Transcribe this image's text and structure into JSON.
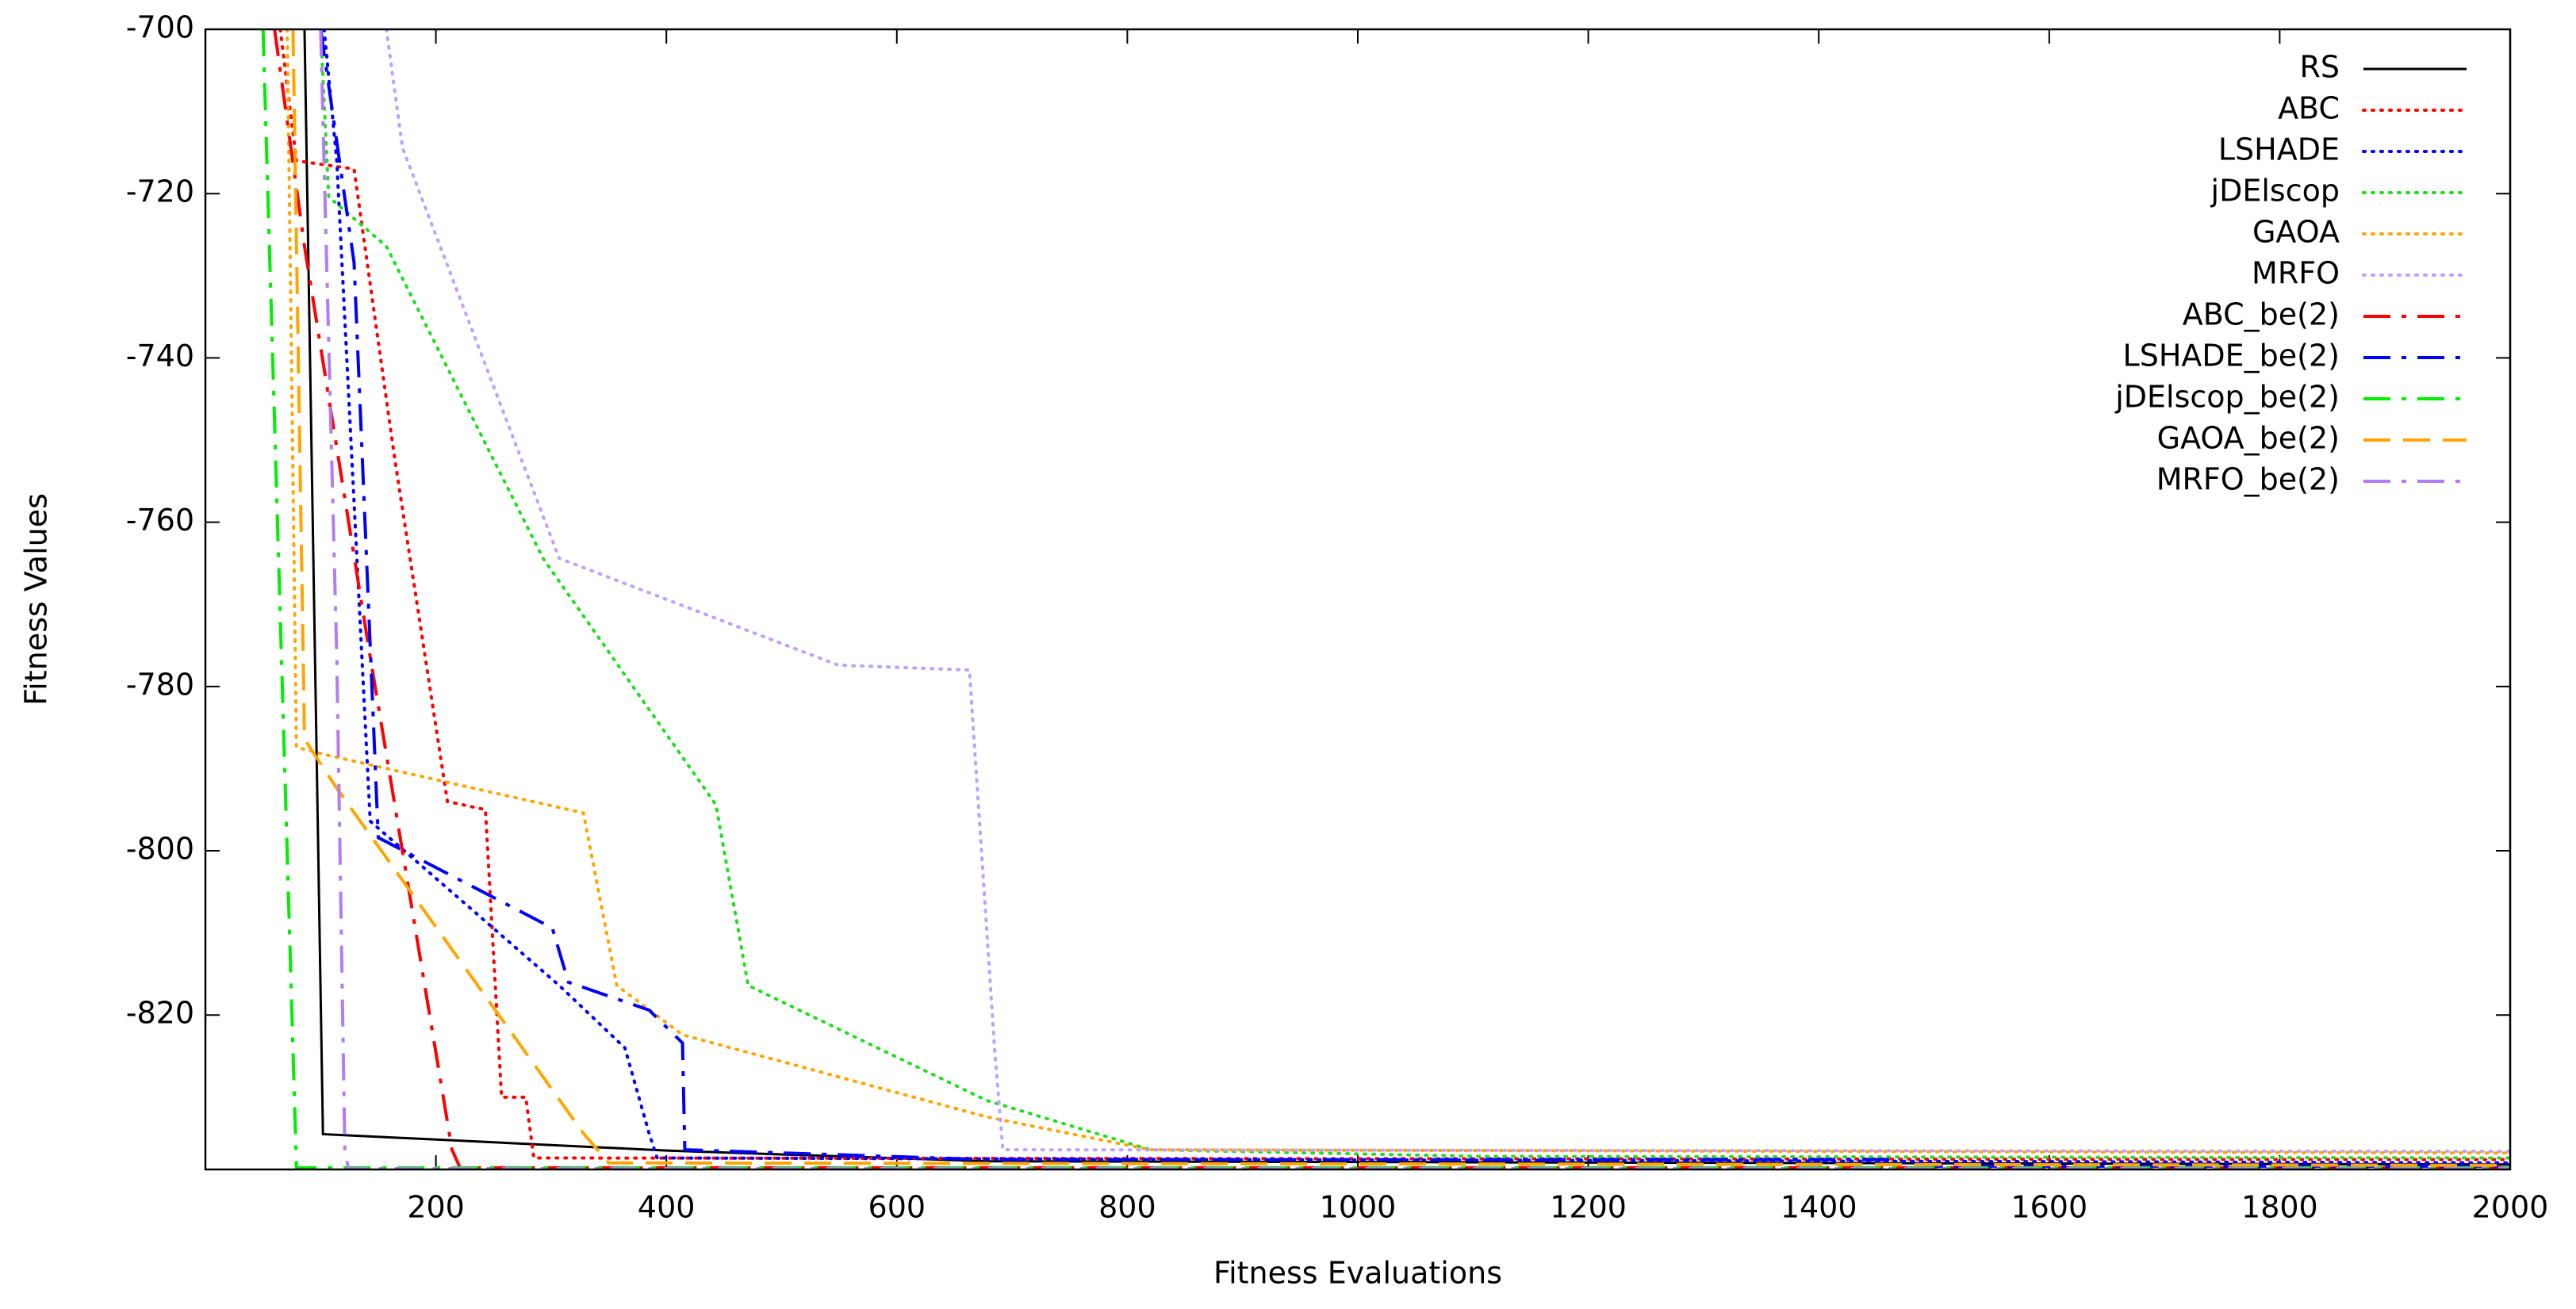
{
  "chart_data": {
    "type": "line",
    "xlabel": "Fitness Evaluations",
    "ylabel": "Fitness Values",
    "xlim": [
      0,
      2000
    ],
    "ylim": [
      -838.8,
      -700
    ],
    "xticks": [
      200,
      400,
      600,
      800,
      1000,
      1200,
      1400,
      1600,
      1800,
      2000
    ],
    "yticks": [
      -820,
      -800,
      -780,
      -760,
      -740,
      -720,
      -700
    ],
    "legend": "upper right",
    "series": [
      {
        "name": "RS",
        "color": "#000000",
        "style": "solid",
        "x": [
          86,
          102,
          400,
          678,
          2000
        ],
        "values": [
          -700,
          -834.5,
          -836.5,
          -837.8,
          -838.2
        ]
      },
      {
        "name": "ABC",
        "color": "#ff0000",
        "style": "dotted",
        "x": [
          65,
          79,
          129,
          164,
          210,
          243,
          257,
          278,
          285,
          2000
        ],
        "values": [
          -700,
          -716,
          -717,
          -752,
          -794,
          -795,
          -830,
          -830,
          -837.4,
          -837.6
        ]
      },
      {
        "name": "LSHADE",
        "color": "#0000ff",
        "style": "dotted",
        "x": [
          103,
          114,
          143,
          307,
          364,
          385,
          392,
          2000
        ],
        "values": [
          -700,
          -716,
          -796.4,
          -816.4,
          -824,
          -834.4,
          -837.4,
          -838
        ]
      },
      {
        "name": "jDElscop",
        "color": "#22dd22",
        "style": "dotted",
        "x": [
          100,
          107,
          157,
          293,
          443,
          471,
          678,
          820,
          1105,
          2000
        ],
        "values": [
          -700,
          -720.4,
          -726.4,
          -764.4,
          -794.4,
          -816.4,
          -830.4,
          -836.4,
          -837.2,
          -837.4
        ]
      },
      {
        "name": "GAOA",
        "color": "#ffa500",
        "style": "dotted",
        "x": [
          71,
          79,
          107,
          328,
          357,
          414,
          678,
          820,
          2000
        ],
        "values": [
          -700,
          -787.4,
          -788.4,
          -795.4,
          -816.4,
          -822.4,
          -832.4,
          -836.4,
          -836.8
        ]
      },
      {
        "name": "MRFO",
        "color": "#bf9fff",
        "style": "dotted",
        "x": [
          157,
          171,
          307,
          549,
          663,
          685,
          692,
          2000
        ],
        "values": [
          -700,
          -714.4,
          -764.4,
          -777.4,
          -778,
          -824.4,
          -836.4,
          -836.6
        ]
      },
      {
        "name": "ABC_be(2)",
        "color": "#ff0000",
        "style": "dashdot",
        "x": [
          60,
          86,
          143,
          214,
          221,
          2000
        ],
        "values": [
          -700,
          -726.4,
          -776.4,
          -836.4,
          -838.6,
          -838.6
        ]
      },
      {
        "name": "LSHADE_be(2)",
        "color": "#0000ff",
        "style": "dashdot",
        "x": [
          100,
          129,
          150,
          301,
          315,
          385,
          414,
          416,
          678,
          1461,
          1500,
          2000
        ],
        "values": [
          -700,
          -728.4,
          -798.4,
          -809.4,
          -816,
          -819.4,
          -823.4,
          -836.4,
          -837.6,
          -837.6,
          -838.4,
          -838.4
        ]
      },
      {
        "name": "jDElscop_be(2)",
        "color": "#00ee00",
        "style": "dashdot",
        "x": [
          50,
          79,
          2000
        ],
        "values": [
          -700,
          -838.6,
          -838.6
        ]
      },
      {
        "name": "GAOA_be(2)",
        "color": "#ffa500",
        "style": "dashed",
        "x": [
          76,
          86,
          114,
          328,
          350,
          2000
        ],
        "values": [
          -700,
          -786.4,
          -792.4,
          -834.4,
          -838,
          -838.3
        ]
      },
      {
        "name": "MRFO_be(2)",
        "color": "#b27cf5",
        "style": "dashdot",
        "x": [
          100,
          114,
          121,
          124,
          2000
        ],
        "values": [
          -700,
          -776.4,
          -836.4,
          -838.7,
          -838.7
        ]
      }
    ]
  }
}
